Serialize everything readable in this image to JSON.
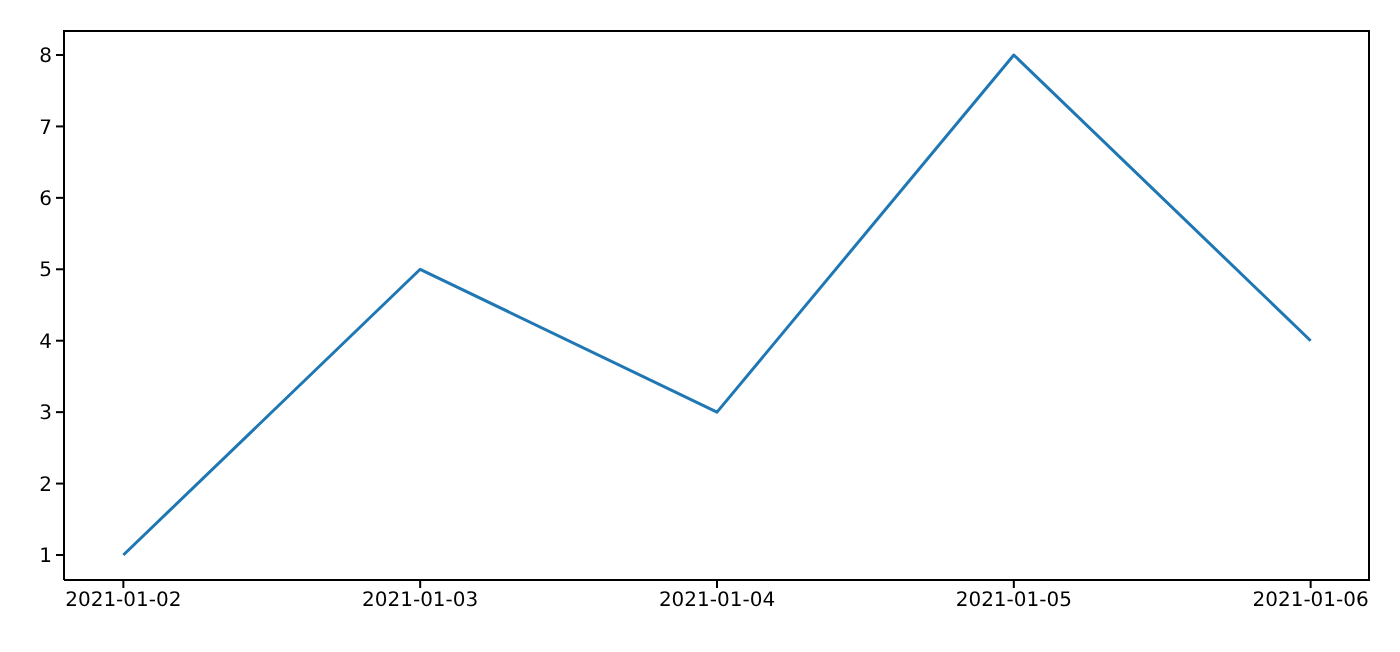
{
  "chart_data": {
    "type": "line",
    "x": [
      "2021-01-02",
      "2021-01-03",
      "2021-01-04",
      "2021-01-05",
      "2021-01-06"
    ],
    "series": [
      {
        "color": "#1f77b4",
        "values": [
          1,
          5,
          3,
          8,
          4
        ]
      }
    ],
    "xlim": [
      "2021-01-01T19:12",
      "2021-01-06T04:48"
    ],
    "xticks": [
      "2021-01-02",
      "2021-01-03",
      "2021-01-04",
      "2021-01-05",
      "2021-01-06"
    ],
    "ylim": [
      0.65,
      8.35
    ],
    "yticks": [
      1,
      2,
      3,
      4,
      5,
      6,
      7,
      8
    ],
    "grid": false,
    "legend": false,
    "marker": "none",
    "line_style": "solid"
  }
}
